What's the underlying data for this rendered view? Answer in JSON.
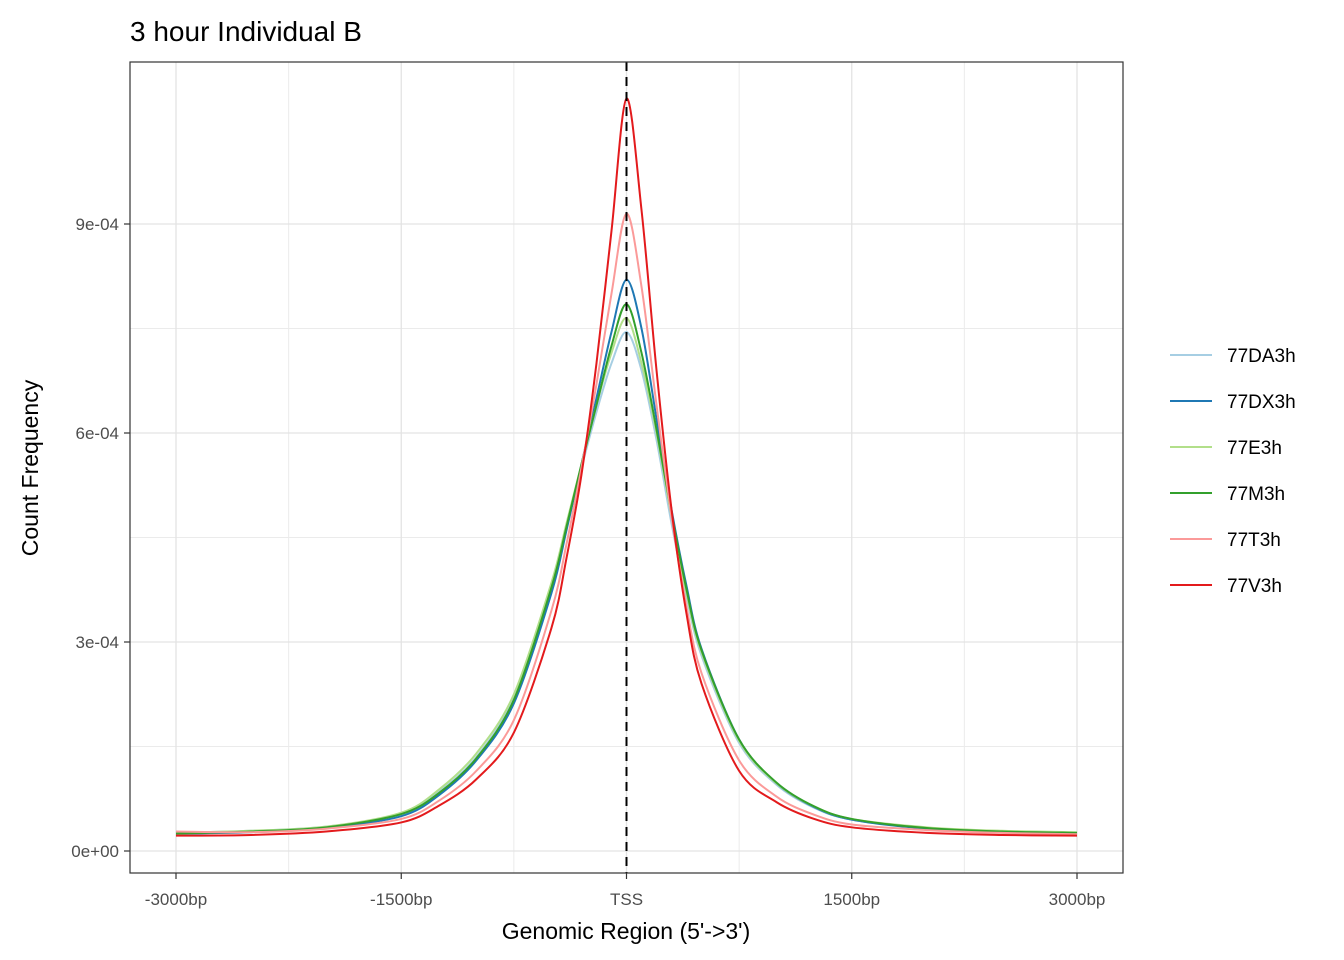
{
  "chart_data": {
    "type": "line",
    "title": "3 hour Individual B",
    "xlabel": "Genomic Region (5'->3')",
    "ylabel": "Count Frequency",
    "xlim": [
      -3000,
      3000
    ],
    "ylim": [
      0,
      0.00108
    ],
    "grid": true,
    "legend_position": "right",
    "x_ticks": [
      {
        "value": -3000,
        "label": "-3000bp"
      },
      {
        "value": -1500,
        "label": "-1500bp"
      },
      {
        "value": 0,
        "label": "TSS"
      },
      {
        "value": 1500,
        "label": "1500bp"
      },
      {
        "value": 3000,
        "label": "3000bp"
      }
    ],
    "y_ticks": [
      {
        "value": 0,
        "label": "0e+00"
      },
      {
        "value": 0.0003,
        "label": "3e-04"
      },
      {
        "value": 0.0006,
        "label": "6e-04"
      },
      {
        "value": 0.0009,
        "label": "9e-04"
      }
    ],
    "vline": {
      "x": 0,
      "style": "dashed",
      "color": "#000000"
    },
    "x": [
      -3000,
      -2500,
      -2000,
      -1500,
      -1250,
      -1000,
      -750,
      -500,
      -400,
      -300,
      -200,
      -100,
      0,
      100,
      200,
      300,
      400,
      500,
      750,
      1000,
      1250,
      1500,
      2000,
      2500,
      3000
    ],
    "series": [
      {
        "name": "77DA3h",
        "color": "#a6cee3",
        "values": [
          2.6e-05,
          2.9e-05,
          3.5e-05,
          5.3e-05,
          8.5e-05,
          0.000135,
          0.00022,
          0.00038,
          0.000465,
          0.00055,
          0.00063,
          0.0007,
          0.000745,
          0.00069,
          0.00059,
          0.00047,
          0.000365,
          0.00028,
          0.000155,
          9.5e-05,
          6.2e-05,
          4.5e-05,
          3.3e-05,
          2.8e-05,
          2.6e-05
        ]
      },
      {
        "name": "77DX3h",
        "color": "#1f78b4",
        "values": [
          2.5e-05,
          2.7e-05,
          3.3e-05,
          5e-05,
          8e-05,
          0.00013,
          0.000212,
          0.00037,
          0.00046,
          0.000555,
          0.00065,
          0.000745,
          0.00082,
          0.00075,
          0.00062,
          0.00049,
          0.00038,
          0.00029,
          0.00016,
          9.7e-05,
          6.3e-05,
          4.5e-05,
          3.2e-05,
          2.7e-05,
          2.5e-05
        ]
      },
      {
        "name": "77E3h",
        "color": "#b2df8a",
        "values": [
          2.6e-05,
          2.9e-05,
          3.5e-05,
          5.5e-05,
          8.8e-05,
          0.00014,
          0.000225,
          0.000385,
          0.00047,
          0.000555,
          0.00064,
          0.000715,
          0.000765,
          0.0007,
          0.0006,
          0.00048,
          0.00037,
          0.000285,
          0.000158,
          9.7e-05,
          6.4e-05,
          4.6e-05,
          3.4e-05,
          2.9e-05,
          2.7e-05
        ]
      },
      {
        "name": "77M3h",
        "color": "#33a02c",
        "values": [
          2.5e-05,
          2.8e-05,
          3.4e-05,
          5.3e-05,
          8.3e-05,
          0.000133,
          0.000217,
          0.000378,
          0.000465,
          0.000555,
          0.00064,
          0.000725,
          0.000785,
          0.000715,
          0.000605,
          0.000485,
          0.000375,
          0.000288,
          0.00016,
          9.8e-05,
          6.4e-05,
          4.6e-05,
          3.3e-05,
          2.8e-05,
          2.6e-05
        ]
      },
      {
        "name": "77T3h",
        "color": "#fb9a99",
        "values": [
          2.8e-05,
          2.7e-05,
          3.2e-05,
          4.6e-05,
          7.2e-05,
          0.000115,
          0.000188,
          0.000345,
          0.00044,
          0.00055,
          0.00067,
          0.0008,
          0.000915,
          0.00081,
          0.00064,
          0.00048,
          0.00035,
          0.000255,
          0.00013,
          7.8e-05,
          5.2e-05,
          3.8e-05,
          3e-05,
          2.6e-05,
          2.4e-05
        ]
      },
      {
        "name": "77V3h",
        "color": "#e31a1c",
        "values": [
          2.2e-05,
          2.3e-05,
          2.8e-05,
          4.1e-05,
          6.5e-05,
          0.000103,
          0.00017,
          0.00032,
          0.00042,
          0.00054,
          0.0007,
          0.00089,
          0.00108,
          0.00092,
          0.00069,
          0.00049,
          0.00034,
          0.00024,
          0.000115,
          7e-05,
          4.6e-05,
          3.4e-05,
          2.6e-05,
          2.3e-05,
          2.2e-05
        ]
      }
    ]
  }
}
